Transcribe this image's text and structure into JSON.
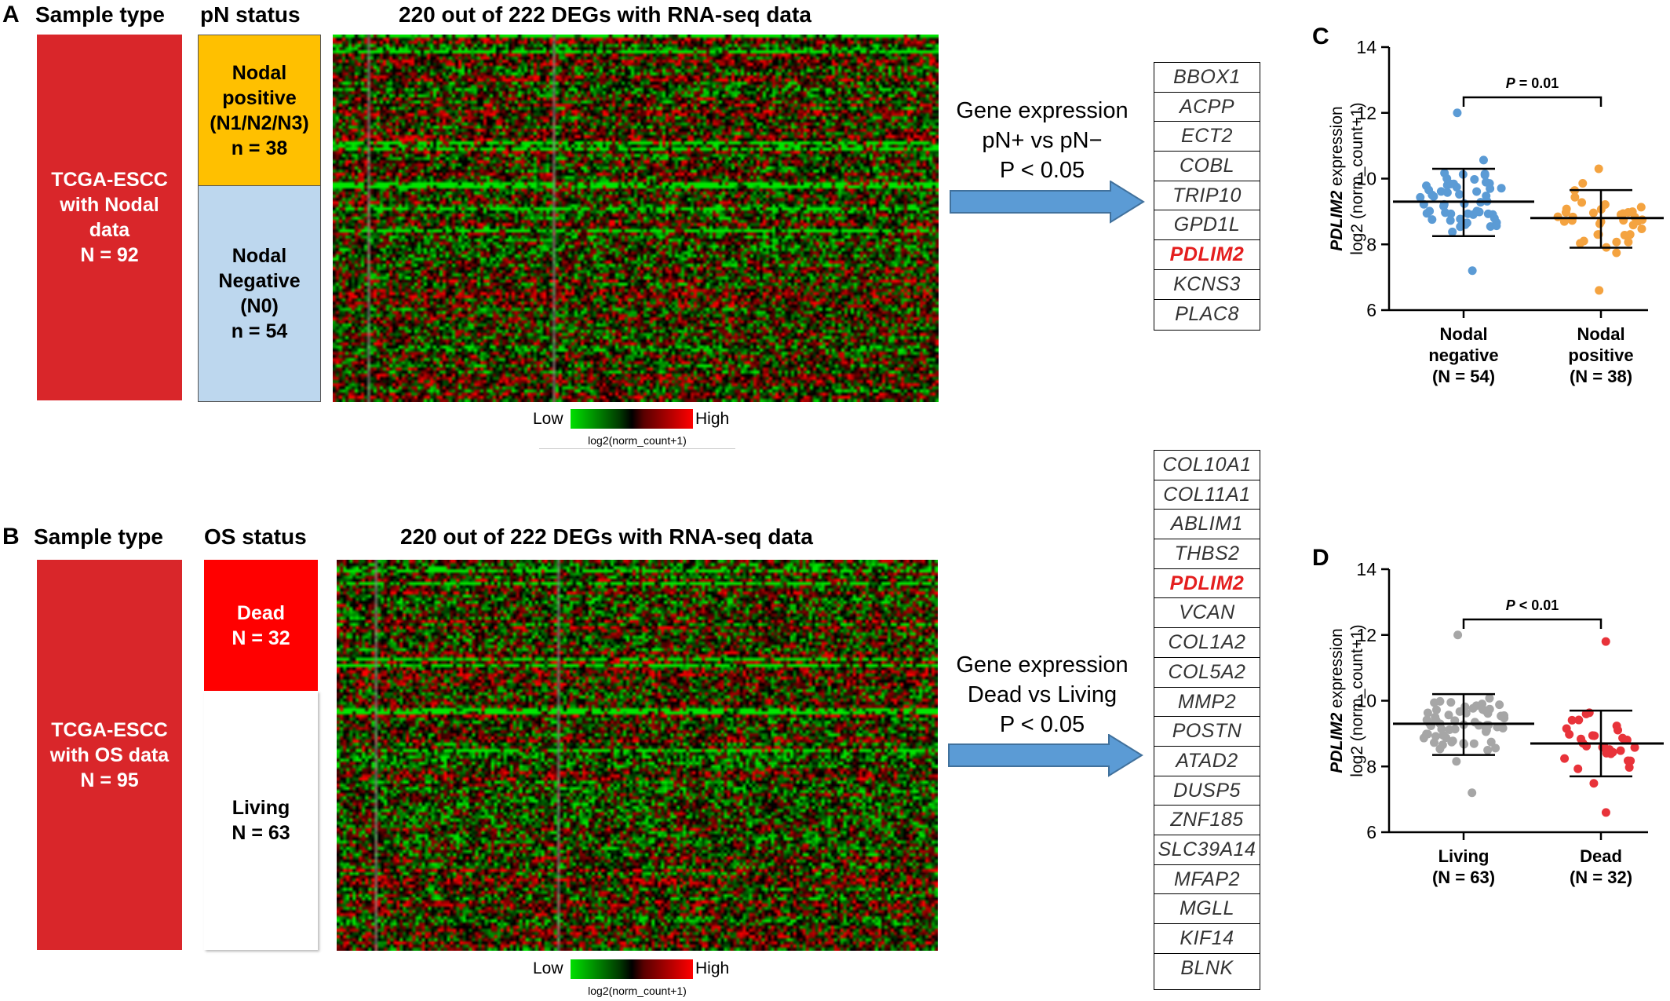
{
  "panelA": {
    "letter": "A",
    "sample_type_header": "Sample type",
    "status_header": "pN status",
    "heatmap_title": "220 out of 222 DEGs with RNA-seq data",
    "sample_box_lines": [
      "TCGA-ESCC",
      "with Nodal",
      "data",
      "N = 92"
    ],
    "status_top_lines": [
      "Nodal",
      "positive",
      "(N1/N2/N3)",
      "n = 38"
    ],
    "status_bottom_lines": [
      "Nodal",
      "Negative",
      "(N0)",
      "n = 54"
    ],
    "legend_low": "Low",
    "legend_high": "High",
    "legend_caption": "log2(norm_count+1)",
    "arrow_text_lines": [
      "Gene expression",
      "pN+ vs pN−",
      "P < 0.05"
    ],
    "genes": [
      "BBOX1",
      "ACPP",
      "ECT2",
      "COBL",
      "TRIP10",
      "GPD1L",
      "PDLIM2",
      "KCNS3",
      "PLAC8"
    ],
    "highlight_gene": "PDLIM2",
    "colors": {
      "sample_box": "#d9262a",
      "status_top": "#ffc000",
      "status_bottom": "#bdd7ee"
    }
  },
  "panelB": {
    "letter": "B",
    "sample_type_header": "Sample type",
    "status_header": "OS status",
    "heatmap_title": "220 out of 222 DEGs with RNA-seq data",
    "sample_box_lines": [
      "TCGA-ESCC",
      "with OS data",
      "N = 95"
    ],
    "status_top_lines": [
      "Dead",
      "N = 32"
    ],
    "status_bottom_lines": [
      "Living",
      "N = 63"
    ],
    "legend_low": "Low",
    "legend_high": "High",
    "legend_caption": "log2(norm_count+1)",
    "arrow_text_lines": [
      "Gene expression",
      "Dead vs Living",
      "P < 0.05"
    ],
    "genes": [
      "COL10A1",
      "COL11A1",
      "ABLIM1",
      "THBS2",
      "PDLIM2",
      "VCAN",
      "COL1A2",
      "COL5A2",
      "MMP2",
      "POSTN",
      "ATAD2",
      "DUSP5",
      "ZNF185",
      "SLC39A14",
      "MFAP2",
      "MGLL",
      "KIF14",
      "BLNK"
    ],
    "highlight_gene": "PDLIM2",
    "colors": {
      "sample_box": "#d9262a",
      "status_top": "#ff0000",
      "status_bottom": "#ffffff"
    }
  },
  "chart_data": [
    {
      "panel": "C",
      "type": "scatter",
      "ylabel_italic": "PDLIM2",
      "ylabel_rest": " expression",
      "ylabel_line2": "log2 (norm_count+1)",
      "ylim": [
        6,
        14
      ],
      "yticks": [
        6,
        8,
        10,
        12,
        14
      ],
      "annotation": "P = 0.01",
      "groups": [
        {
          "label_lines": [
            "Nodal",
            "negative",
            "(N = 54)"
          ],
          "n": 54,
          "mean": 9.3,
          "sd_low": 8.25,
          "sd_high": 10.3,
          "color": "#5b9bd5",
          "min": 7.2,
          "max": 12.0
        },
        {
          "label_lines": [
            "Nodal",
            "positive",
            "(N = 38)"
          ],
          "n": 38,
          "mean": 8.8,
          "sd_low": 7.9,
          "sd_high": 9.65,
          "color": "#f4a340",
          "min": 6.6,
          "max": 10.3
        }
      ]
    },
    {
      "panel": "D",
      "type": "scatter",
      "ylabel_italic": "PDLIM2",
      "ylabel_rest": " expression",
      "ylabel_line2": "log2 (norm_count+1)",
      "ylim": [
        6,
        14
      ],
      "yticks": [
        6,
        8,
        10,
        12,
        14
      ],
      "annotation": "P < 0.01",
      "groups": [
        {
          "label_lines": [
            "Living",
            "(N = 63)"
          ],
          "n": 63,
          "mean": 9.3,
          "sd_low": 8.35,
          "sd_high": 10.2,
          "color": "#a6a6a6",
          "min": 7.2,
          "max": 12.0
        },
        {
          "label_lines": [
            "Dead",
            "(N = 32)"
          ],
          "n": 32,
          "mean": 8.7,
          "sd_low": 7.7,
          "sd_high": 9.7,
          "color": "#e8333a",
          "min": 6.6,
          "max": 11.8
        }
      ]
    }
  ]
}
